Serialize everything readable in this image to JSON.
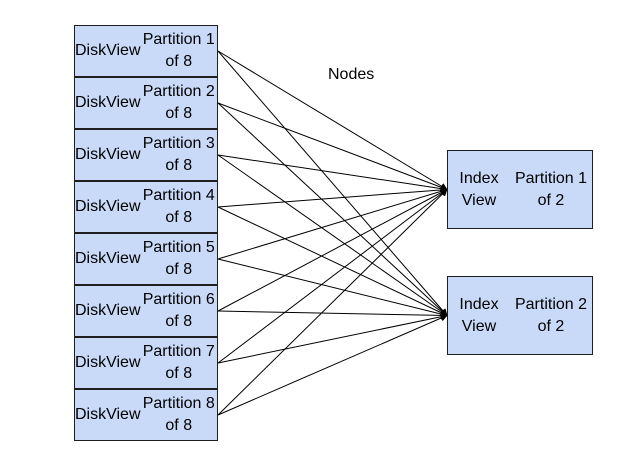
{
  "diagram": {
    "label": "Nodes",
    "disk_partitions": [
      {
        "title": "DiskView",
        "subtitle": "Partition 1 of 8"
      },
      {
        "title": "DiskView",
        "subtitle": "Partition 2 of 8"
      },
      {
        "title": "DiskView",
        "subtitle": "Partition 3 of 8"
      },
      {
        "title": "DiskView",
        "subtitle": "Partition 4 of 8"
      },
      {
        "title": "DiskView",
        "subtitle": "Partition 5 of 8"
      },
      {
        "title": "DiskView",
        "subtitle": "Partition 6 of 8"
      },
      {
        "title": "DiskView",
        "subtitle": "Partition 7 of 8"
      },
      {
        "title": "DiskView",
        "subtitle": "Partition 8 of 8"
      }
    ],
    "index_partitions": [
      {
        "title": "Index View",
        "subtitle": "Partition 1 of 2"
      },
      {
        "title": "Index View",
        "subtitle": "Partition 2 of 2"
      }
    ],
    "connections": "each DiskView partition connects to each Index View partition",
    "colors": {
      "box_fill": "#c9daf8",
      "box_border": "#1f1f1f",
      "line": "#000000"
    }
  }
}
